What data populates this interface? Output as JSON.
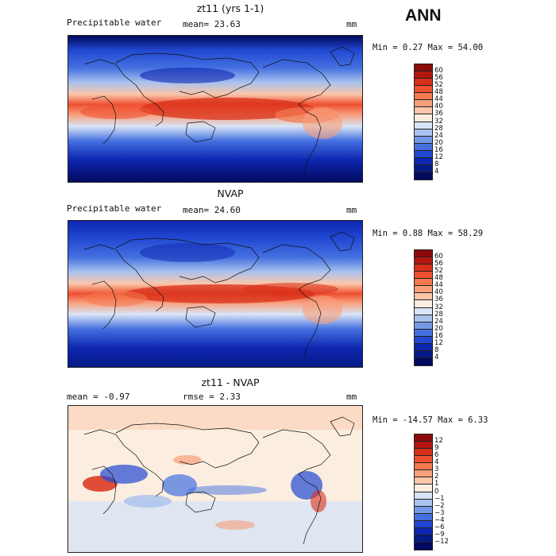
{
  "season": "ANN",
  "panels": [
    {
      "title": "zt11 (yrs 1-1)",
      "left_label": "Precipitable water",
      "center_label": "mean=  23.63",
      "units": "mm",
      "minmax": "Min =   0.27 Max =  54.00",
      "colorbar": {
        "labels": [
          "60",
          "56",
          "52",
          "48",
          "44",
          "40",
          "36",
          "32",
          "28",
          "24",
          "20",
          "16",
          "12",
          "8",
          "4"
        ],
        "colors": [
          "#8b0a0a",
          "#b3160f",
          "#d8301a",
          "#ee5030",
          "#f47850",
          "#f89f7c",
          "#fbc7ab",
          "#fbeee0",
          "#d8e4f6",
          "#a9c2ee",
          "#7499e6",
          "#4470e0",
          "#2148d2",
          "#0e26b0",
          "#061a86",
          "#020a5e"
        ]
      }
    },
    {
      "title": "NVAP",
      "left_label": "Precipitable water",
      "center_label": "mean=  24.60",
      "units": "mm",
      "minmax": "Min =   0.88 Max =  58.29",
      "colorbar": {
        "labels": [
          "60",
          "56",
          "52",
          "48",
          "44",
          "40",
          "36",
          "32",
          "28",
          "24",
          "20",
          "16",
          "12",
          "8",
          "4"
        ],
        "colors": [
          "#8b0a0a",
          "#b3160f",
          "#d8301a",
          "#ee5030",
          "#f47850",
          "#f89f7c",
          "#fbc7ab",
          "#fbeee0",
          "#d8e4f6",
          "#a9c2ee",
          "#7499e6",
          "#4470e0",
          "#2148d2",
          "#0e26b0",
          "#061a86",
          "#020a5e"
        ]
      }
    },
    {
      "title": "zt11 - NVAP",
      "left_label": "mean =  -0.97",
      "center_label": "rmse =   2.33",
      "units": "mm",
      "minmax": "Min = -14.57 Max =   6.33",
      "colorbar": {
        "labels": [
          "12",
          "9",
          "6",
          "4",
          "3",
          "2",
          "1",
          "0",
          "−1",
          "−2",
          "−3",
          "−4",
          "−6",
          "−9",
          "−12"
        ],
        "colors": [
          "#8b0a0a",
          "#b3160f",
          "#d8301a",
          "#ee5030",
          "#f47850",
          "#f89f7c",
          "#fbc7ab",
          "#fbeee0",
          "#d8e4f6",
          "#a9c2ee",
          "#7499e6",
          "#4470e0",
          "#2148d2",
          "#0e26b0",
          "#061a86",
          "#020a5e"
        ]
      }
    }
  ]
}
